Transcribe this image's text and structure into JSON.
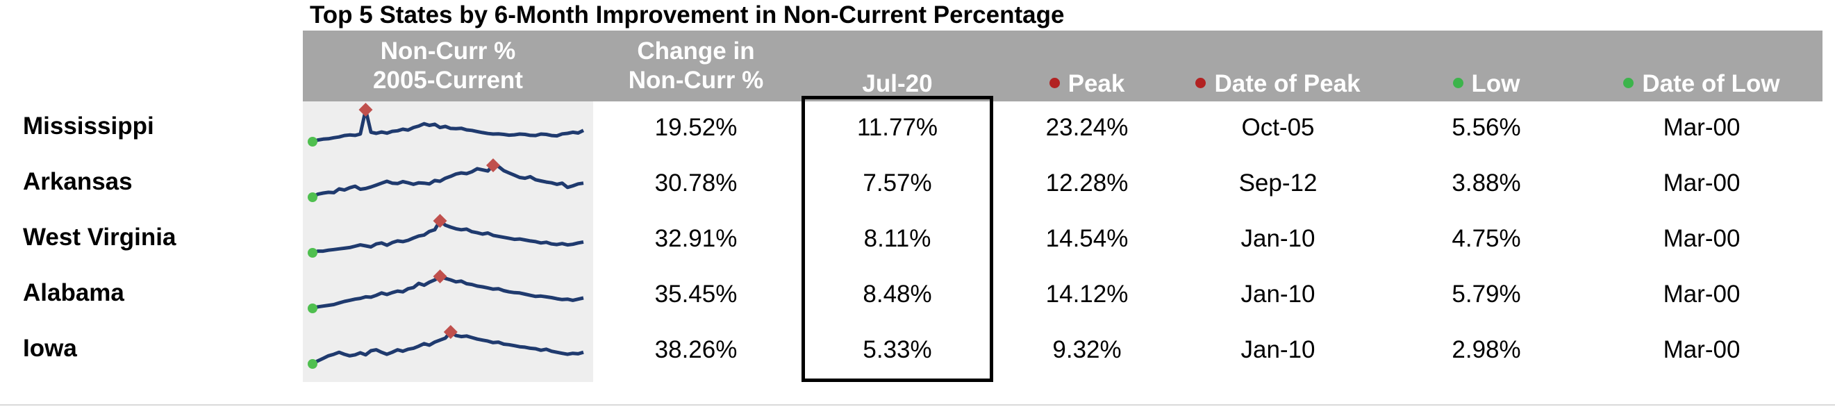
{
  "title": "Top 5 States by 6-Month Improvement in Non-Current Percentage",
  "colors": {
    "header_bg": "#a6a6a6",
    "header_text": "#ffffff",
    "peak_marker": "#c0504d",
    "low_marker": "#4fbf4f",
    "sparkline": "#1f3a6e",
    "spark_bg": "#eeeeee"
  },
  "headers": {
    "sparkline": "Non-Curr %\n2005-Current",
    "change": "Change in\nNon-Curr %",
    "current": "Jul-20",
    "peak": "Peak",
    "date_of_peak": "Date of Peak",
    "low": "Low",
    "date_of_low": "Date of Low"
  },
  "header_markers": {
    "peak": "red-dot-icon",
    "date_of_peak": "red-dot-icon",
    "low": "green-dot-icon",
    "date_of_low": "green-dot-icon"
  },
  "rows": [
    {
      "state": "Mississippi",
      "change": "19.52%",
      "current": "11.77%",
      "peak": "23.24%",
      "date_of_peak": "Oct-05",
      "low": "5.56%",
      "date_of_low": "Mar-00"
    },
    {
      "state": "Arkansas",
      "change": "30.78%",
      "current": "7.57%",
      "peak": "12.28%",
      "date_of_peak": "Sep-12",
      "low": "3.88%",
      "date_of_low": "Mar-00"
    },
    {
      "state": "West Virginia",
      "change": "32.91%",
      "current": "8.11%",
      "peak": "14.54%",
      "date_of_peak": "Jan-10",
      "low": "4.75%",
      "date_of_low": "Mar-00"
    },
    {
      "state": "Alabama",
      "change": "35.45%",
      "current": "8.48%",
      "peak": "14.12%",
      "date_of_peak": "Jan-10",
      "low": "5.79%",
      "date_of_low": "Mar-00"
    },
    {
      "state": "Iowa",
      "change": "38.26%",
      "current": "5.33%",
      "peak": "9.32%",
      "date_of_peak": "Jan-10",
      "low": "2.98%",
      "date_of_low": "Mar-00"
    }
  ],
  "chart_data": {
    "type": "table",
    "title": "Top 5 States by 6-Month Improvement in Non-Current Percentage",
    "columns": [
      "Non-Curr % 2005-Current",
      "Change in Non-Curr %",
      "Jul-20",
      "Peak",
      "Date of Peak",
      "Low",
      "Date of Low"
    ],
    "sparkline_type": "line",
    "sparklines": [
      {
        "state": "Mississippi",
        "values": [
          5.6,
          6.5,
          7.0,
          7.2,
          7.8,
          8.2,
          9.0,
          9.3,
          9.1,
          9.8,
          23.2,
          10.8,
          10.2,
          10.9,
          10.3,
          11.3,
          11.6,
          12.5,
          12.0,
          13.4,
          14.2,
          15.5,
          14.6,
          15.2,
          13.4,
          14.0,
          12.9,
          12.8,
          13.0,
          12.1,
          11.8,
          11.2,
          10.6,
          10.1,
          9.8,
          9.9,
          9.6,
          9.2,
          9.4,
          9.8,
          9.6,
          9.1,
          9.0,
          9.8,
          9.6,
          9.0,
          8.8,
          9.9,
          10.2,
          10.8,
          10.4,
          11.8
        ]
      },
      {
        "state": "Arkansas",
        "values": [
          3.9,
          4.7,
          5.0,
          5.2,
          5.1,
          6.1,
          5.8,
          6.4,
          6.8,
          6.0,
          6.2,
          6.6,
          7.1,
          7.6,
          8.1,
          7.6,
          7.5,
          8.0,
          7.7,
          7.3,
          7.7,
          7.6,
          7.4,
          8.3,
          8.1,
          8.9,
          9.4,
          10.0,
          10.3,
          10.1,
          10.6,
          11.4,
          11.1,
          10.8,
          12.3,
          12.0,
          10.9,
          10.3,
          9.7,
          9.1,
          8.9,
          9.3,
          8.5,
          8.2,
          7.9,
          7.7,
          7.3,
          7.6,
          6.5,
          6.9,
          7.4,
          7.6
        ]
      },
      {
        "state": "West Virginia",
        "values": [
          4.8,
          5.3,
          5.3,
          5.6,
          5.8,
          6.0,
          6.2,
          6.4,
          6.8,
          7.2,
          6.9,
          6.6,
          7.5,
          7.8,
          7.1,
          7.9,
          8.4,
          8.2,
          8.6,
          9.3,
          9.9,
          10.2,
          11.3,
          11.8,
          14.5,
          13.2,
          12.6,
          12.1,
          11.8,
          12.0,
          11.2,
          10.9,
          10.5,
          10.8,
          10.1,
          9.8,
          9.5,
          9.2,
          8.9,
          9.0,
          8.7,
          8.4,
          8.2,
          7.8,
          8.0,
          7.5,
          7.3,
          7.6,
          7.2,
          7.4,
          7.8,
          8.1
        ]
      },
      {
        "state": "Alabama",
        "values": [
          5.8,
          6.2,
          6.4,
          6.6,
          6.8,
          7.2,
          7.6,
          7.9,
          8.2,
          8.4,
          8.8,
          8.7,
          9.2,
          9.8,
          9.4,
          9.9,
          10.3,
          10.1,
          10.9,
          11.2,
          12.3,
          11.8,
          12.6,
          13.2,
          14.1,
          13.6,
          13.2,
          12.7,
          12.9,
          12.2,
          12.0,
          11.6,
          11.4,
          11.1,
          10.8,
          10.9,
          10.4,
          10.1,
          9.9,
          9.8,
          9.5,
          9.2,
          8.9,
          9.0,
          8.8,
          8.6,
          8.3,
          8.1,
          8.2,
          7.9,
          8.2,
          8.5
        ]
      },
      {
        "state": "Iowa",
        "values": [
          3.0,
          3.6,
          4.1,
          4.6,
          4.9,
          5.3,
          4.9,
          4.6,
          4.8,
          5.2,
          4.8,
          5.6,
          5.8,
          5.3,
          4.9,
          5.3,
          5.8,
          5.5,
          5.9,
          6.1,
          6.5,
          7.0,
          6.7,
          7.3,
          7.7,
          8.1,
          9.3,
          8.6,
          8.4,
          8.5,
          8.2,
          7.9,
          7.7,
          7.5,
          7.2,
          7.3,
          6.9,
          6.8,
          6.6,
          6.4,
          6.3,
          6.1,
          6.0,
          5.7,
          5.9,
          5.5,
          5.3,
          5.1,
          4.9,
          5.1,
          5.0,
          5.3
        ]
      }
    ]
  }
}
